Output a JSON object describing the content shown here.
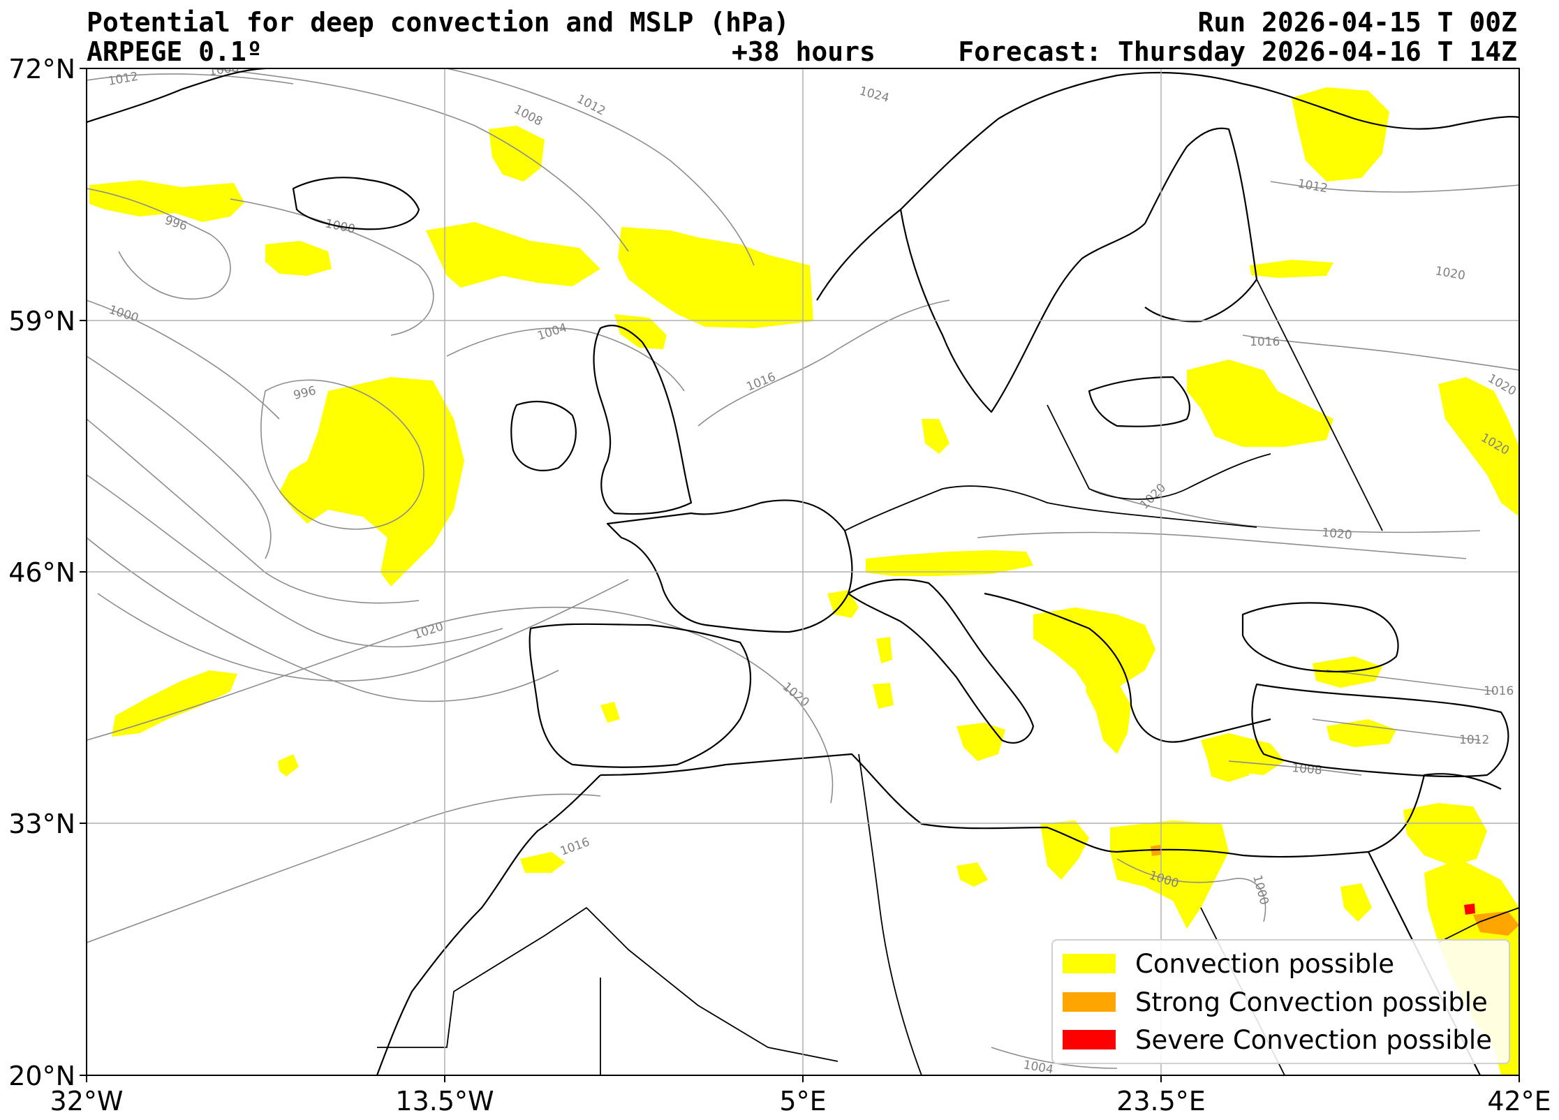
{
  "header": {
    "title": "Potential for deep convection and MSLP (hPa)",
    "model": "ARPEGE 0.1º",
    "lead_time": "+38 hours",
    "run": "Run 2026-04-15 T 00Z",
    "forecast": "Forecast: Thursday 2026-04-16 T 14Z"
  },
  "axes": {
    "lat_labels": [
      "72°N",
      "59°N",
      "46°N",
      "33°N",
      "20°N"
    ],
    "lon_labels": [
      "32°W",
      "13.5°W",
      "5°E",
      "23.5°E",
      "42°E"
    ]
  },
  "isobars": [
    "1012",
    "1008",
    "1008",
    "1012",
    "1024",
    "996",
    "1000",
    "1000",
    "1004",
    "996",
    "1016",
    "1020",
    "1020",
    "1020",
    "1016",
    "1020",
    "1020",
    "1020",
    "1016",
    "1020",
    "1016",
    "1012",
    "1008",
    "1000",
    "1000",
    "1004"
  ],
  "legend": {
    "items": [
      {
        "label": "Convection possible",
        "color": "#ffff00"
      },
      {
        "label": "Strong Convection possible",
        "color": "#ffa500"
      },
      {
        "label": "Severe Convection possible",
        "color": "#ff0000"
      }
    ]
  },
  "colors": {
    "convection": "#ffff00",
    "strong": "#ffa500",
    "severe": "#ff0000",
    "isobar": "#8c8c8c",
    "border": "#000000",
    "grid": "#b0b0b0"
  }
}
